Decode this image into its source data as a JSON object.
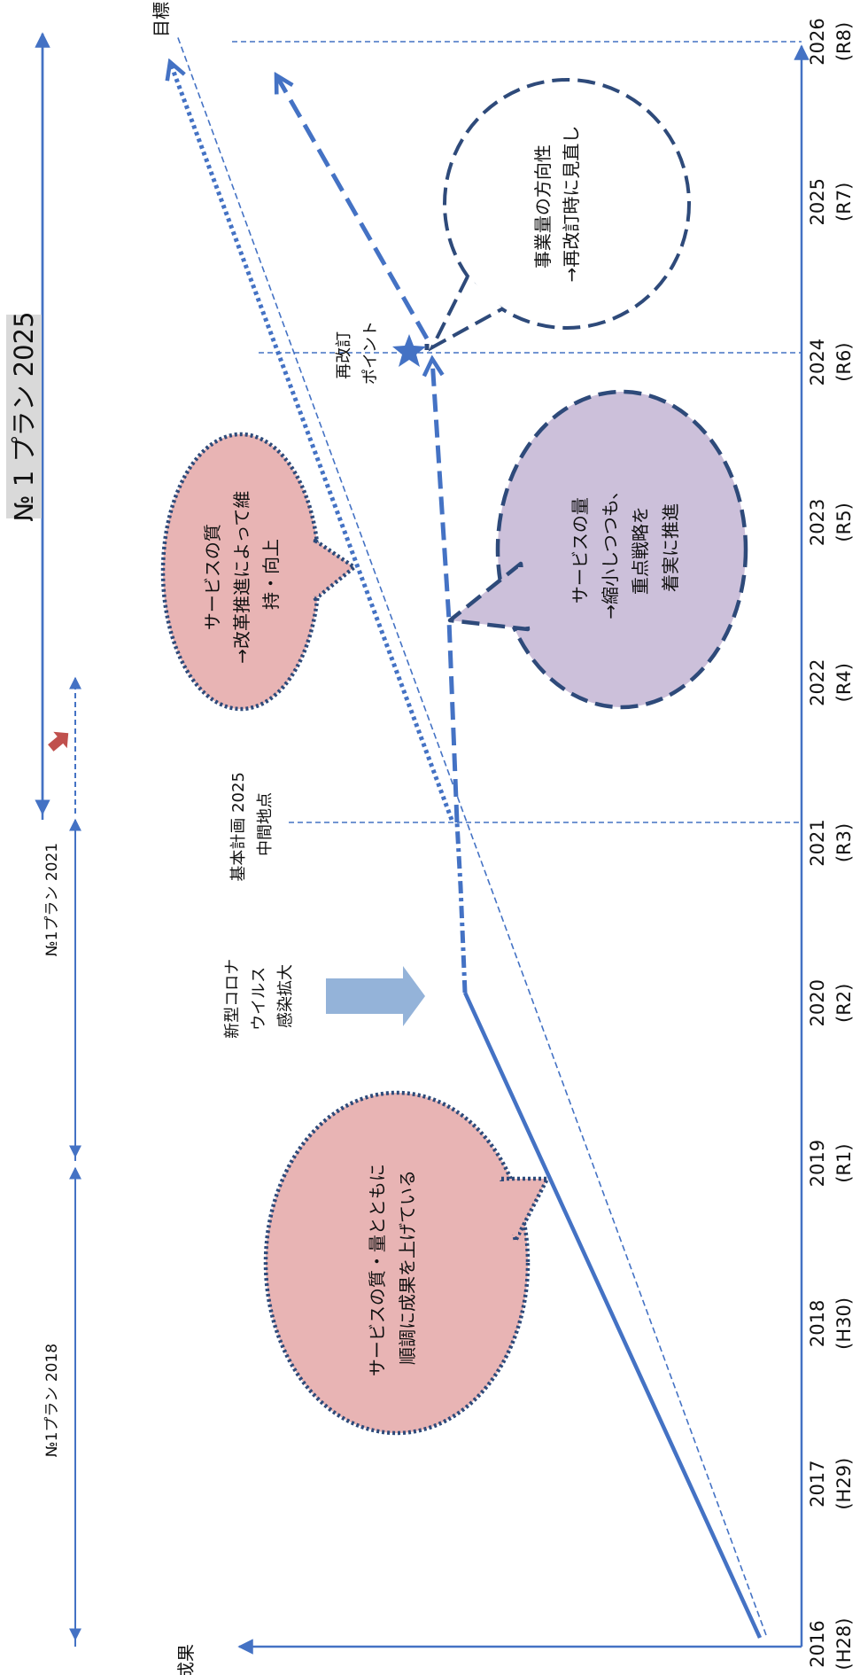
{
  "title": "№ 1 プラン 2025",
  "axis": {
    "y_label": "成果",
    "goal_label": "目標"
  },
  "years": [
    {
      "year": "2016",
      "era": "(H28)"
    },
    {
      "year": "2017",
      "era": "(H29)"
    },
    {
      "year": "2018",
      "era": "(H30)"
    },
    {
      "year": "2019",
      "era": "(R1)"
    },
    {
      "year": "2020",
      "era": "(R2)"
    },
    {
      "year": "2021",
      "era": "(R3)"
    },
    {
      "year": "2022",
      "era": "(R4)"
    },
    {
      "year": "2023",
      "era": "(R5)"
    },
    {
      "year": "2024",
      "era": "(R6)"
    },
    {
      "year": "2025",
      "era": "(R7)"
    },
    {
      "year": "2026",
      "era": "(R8)"
    }
  ],
  "plans": {
    "plan2018": "№1プラン 2018",
    "plan2021": "№1プラン 2021"
  },
  "bubbles": {
    "pink1": [
      "サービスの質・量とともに",
      "順調に成果を上げている"
    ],
    "pink2": [
      "サービスの質",
      "→改革推進によって維",
      "持・向上"
    ],
    "purple": [
      "サービスの量",
      "→縮小しつつも、",
      "重点戦略を",
      "着実に推進"
    ],
    "white": [
      "事業量の方向性",
      "→再改訂時に見直し"
    ]
  },
  "annotations": {
    "corona": [
      "新型コロナ",
      "ウイルス",
      "感染拡大"
    ],
    "midpoint": [
      "基本計画 2025",
      "中間地点"
    ],
    "revision": [
      "再改訂",
      "ポイント"
    ]
  },
  "colors": {
    "line": "#4472c4",
    "dark": "#2e4a7a",
    "pink": "#e8b4b4",
    "purple": "#ccc0da",
    "arrow_light": "#94b3d9",
    "red": "#c0504d",
    "title_bg": "#d9d9d9"
  }
}
